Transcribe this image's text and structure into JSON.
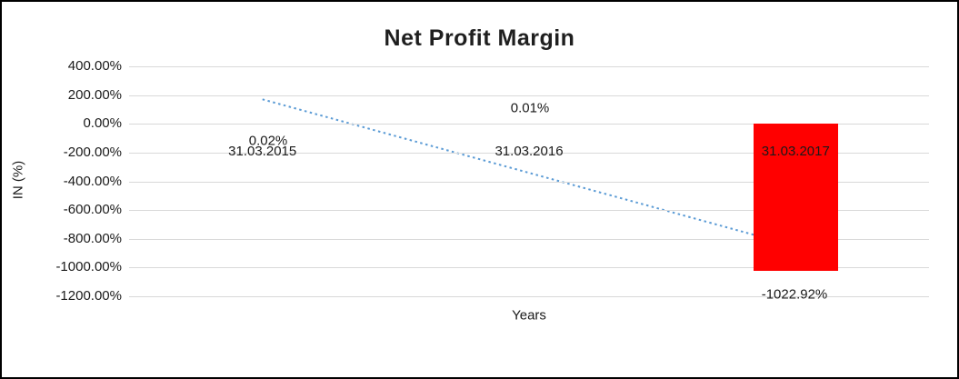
{
  "chart_data": {
    "type": "bar",
    "title": "Net Profit Margin",
    "xlabel": "Years",
    "ylabel": "IN (%)",
    "categories": [
      "31.03.2015",
      "31.03.2016",
      "31.03.2017"
    ],
    "values": [
      0.02,
      0.01,
      -1022.92
    ],
    "data_labels": [
      "0.02%",
      "0.01%",
      "-1022.92%"
    ],
    "y_ticks": [
      "400.00%",
      "200.00%",
      "0.00%",
      "-200.00%",
      "-400.00%",
      "-600.00%",
      "-800.00%",
      "-1000.00%",
      "-1200.00%"
    ],
    "y_tick_values": [
      400,
      200,
      0,
      -200,
      -400,
      -600,
      -800,
      -1000,
      -1200
    ],
    "ylim": [
      -1200,
      400
    ],
    "grid": true,
    "legend": false,
    "bar_color": "#ff0000",
    "gridline_color": "#d9d9d9",
    "trendline": {
      "style": "dotted",
      "color": "#5b9bd5",
      "start_value": 170.5,
      "end_value": -852.4
    }
  }
}
